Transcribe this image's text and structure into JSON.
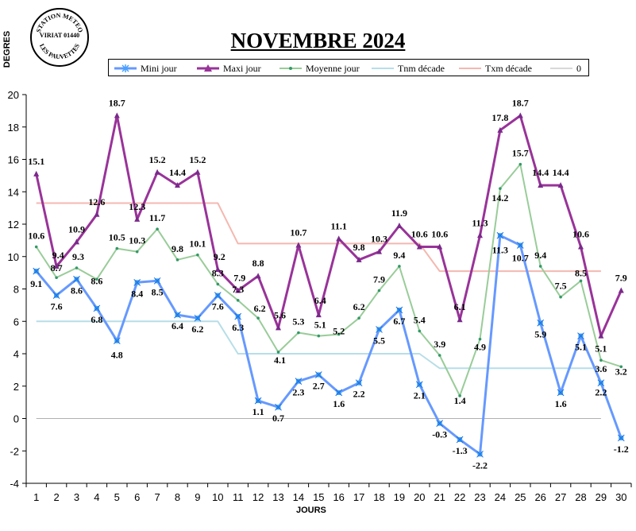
{
  "stamp": {
    "top_text": "STATION METEO",
    "center_text": "VIRIAT 01440",
    "bottom_text": "LES PAUVETTES"
  },
  "colors": {
    "mini": "#6699ff",
    "maxi": "#993399",
    "moyenne": "#99cc99",
    "tnm": "#b7dee8",
    "txm": "#f4b8b0",
    "zero": "#b0b0b0"
  },
  "chart_data": {
    "type": "line",
    "title": "NOVEMBRE 2024",
    "xlabel": "JOURS",
    "ylabel": "DEGRES",
    "ylim": [
      -4,
      20
    ],
    "yticks": [
      -4,
      -2,
      0,
      2,
      4,
      6,
      8,
      10,
      12,
      14,
      16,
      18,
      20
    ],
    "x": [
      1,
      2,
      3,
      4,
      5,
      6,
      7,
      8,
      9,
      10,
      11,
      12,
      13,
      14,
      15,
      16,
      17,
      18,
      19,
      20,
      21,
      22,
      23,
      24,
      25,
      26,
      27,
      28,
      29,
      30
    ],
    "legend_placement": "top",
    "grid": false,
    "series": [
      {
        "name": "Mini jour",
        "marker": "star",
        "labels": true,
        "values": [
          9.1,
          7.6,
          8.6,
          6.8,
          4.8,
          8.4,
          8.5,
          6.4,
          6.2,
          7.6,
          6.3,
          1.1,
          0.7,
          2.3,
          2.7,
          1.6,
          2.2,
          5.5,
          6.7,
          2.1,
          -0.3,
          -1.3,
          -2.2,
          11.3,
          10.7,
          5.9,
          1.6,
          5.1,
          2.2,
          -1.2
        ]
      },
      {
        "name": "Maxi jour",
        "marker": "triangle",
        "labels": true,
        "values": [
          15.1,
          9.4,
          10.9,
          12.6,
          18.7,
          12.3,
          15.2,
          14.4,
          15.2,
          9.2,
          7.9,
          8.8,
          5.6,
          10.7,
          6.4,
          11.1,
          9.8,
          10.3,
          11.9,
          10.6,
          10.6,
          6.1,
          11.3,
          17.8,
          18.7,
          14.4,
          14.4,
          10.6,
          5.1,
          7.9
        ]
      },
      {
        "name": "Moyenne jour",
        "marker": "dot",
        "labels": true,
        "values": [
          10.6,
          8.7,
          9.3,
          8.6,
          10.5,
          10.3,
          11.7,
          9.8,
          10.1,
          8.3,
          7.3,
          6.2,
          4.1,
          5.3,
          5.1,
          5.2,
          6.2,
          7.9,
          9.4,
          5.4,
          3.9,
          1.4,
          4.9,
          14.2,
          15.7,
          9.4,
          7.5,
          8.5,
          3.6,
          3.2
        ]
      },
      {
        "name": "Tnm décade",
        "marker": "none",
        "labels": false,
        "values": [
          6,
          6,
          6,
          6,
          6,
          6,
          6,
          6,
          6,
          6,
          4,
          4,
          4,
          4,
          4,
          4,
          4,
          4,
          4,
          4,
          3.1,
          3.1,
          3.1,
          3.1,
          3.1,
          3.1,
          3.1,
          3.1,
          3.1,
          3.1
        ]
      },
      {
        "name": "Txm décade",
        "marker": "none",
        "labels": false,
        "values": [
          13.3,
          13.3,
          13.3,
          13.3,
          13.3,
          13.3,
          13.3,
          13.3,
          13.3,
          13.3,
          10.8,
          10.8,
          10.8,
          10.8,
          10.8,
          10.8,
          10.8,
          10.8,
          10.8,
          10.8,
          9.1,
          9.1,
          9.1,
          9.1,
          9.1,
          9.1,
          9.1,
          9.1,
          9.1,
          9.1
        ]
      },
      {
        "name": "0",
        "marker": "none",
        "labels": false,
        "values": [
          0,
          0,
          0,
          0,
          0,
          0,
          0,
          0,
          0,
          0,
          0,
          0,
          0,
          0,
          0,
          0,
          0,
          0,
          0,
          0,
          0,
          0,
          0,
          0,
          0,
          0,
          0,
          0,
          0,
          0
        ]
      }
    ]
  }
}
